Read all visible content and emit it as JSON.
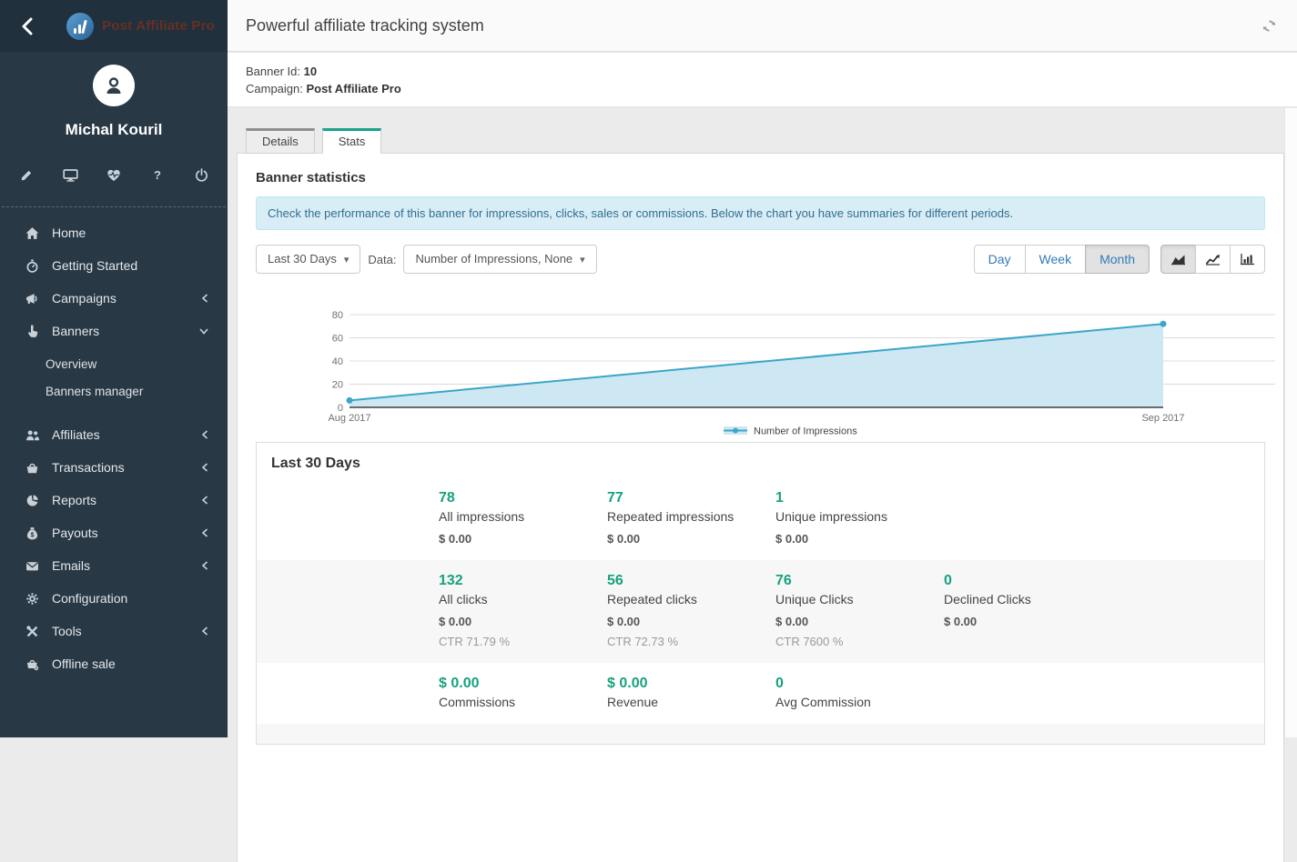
{
  "header": {
    "title": "Powerful affiliate tracking system"
  },
  "banner_info": {
    "banner_id_label": "Banner Id:",
    "banner_id": "10",
    "campaign_label": "Campaign:",
    "campaign": "Post Affiliate Pro"
  },
  "tabs": [
    {
      "label": "Details",
      "active": false
    },
    {
      "label": "Stats",
      "active": true
    }
  ],
  "sidebar": {
    "logo_text": "Post Affiliate Pro",
    "user_name": "Michal Kouril",
    "quick_icons": [
      "pencil-icon",
      "display-icon",
      "heartbeat-icon",
      "help-icon",
      "power-icon"
    ],
    "nav": [
      {
        "label": "Home",
        "icon": "home-icon"
      },
      {
        "label": "Getting Started",
        "icon": "stopwatch-icon"
      },
      {
        "label": "Campaigns",
        "icon": "megaphone-icon",
        "chevron": "left"
      },
      {
        "label": "Banners",
        "icon": "hand-pointer-icon",
        "chevron": "down",
        "expanded": true,
        "children": [
          {
            "label": "Overview"
          },
          {
            "label": "Banners manager"
          }
        ]
      },
      {
        "label": "Affiliates",
        "icon": "users-icon",
        "chevron": "left"
      },
      {
        "label": "Transactions",
        "icon": "basket-icon",
        "chevron": "left"
      },
      {
        "label": "Reports",
        "icon": "pie-chart-icon",
        "chevron": "left"
      },
      {
        "label": "Payouts",
        "icon": "money-bag-icon",
        "chevron": "left"
      },
      {
        "label": "Emails",
        "icon": "envelope-icon",
        "chevron": "left"
      },
      {
        "label": "Configuration",
        "icon": "gear-icon"
      },
      {
        "label": "Tools",
        "icon": "tools-icon",
        "chevron": "left"
      },
      {
        "label": "Offline sale",
        "icon": "cash-register-icon"
      }
    ]
  },
  "stats_section": {
    "title": "Banner statistics",
    "info": "Check the performance of this banner for impressions, clicks, sales or commissions. Below the chart you have summaries for different periods."
  },
  "filters": {
    "range_value": "Last 30 Days",
    "data_label": "Data:",
    "data_value": "Number of Impressions, None",
    "periods": [
      "Day",
      "Week",
      "Month"
    ],
    "active_period": "Month",
    "chart_types": [
      "area-chart-icon",
      "line-chart-icon",
      "bar-chart-icon"
    ],
    "active_chart_type": "area-chart-icon"
  },
  "chart_data": {
    "type": "area",
    "x": [
      "Aug 2017",
      "Sep 2017"
    ],
    "series": [
      {
        "name": "Number of Impressions",
        "values": [
          6,
          72
        ]
      }
    ],
    "ylim": [
      0,
      80
    ],
    "yticks": [
      0,
      20,
      40,
      60,
      80
    ],
    "grid": true,
    "legend_position": "bottom",
    "line_color": "#3ba6c9",
    "fill_color": "#cde7f3",
    "title": "",
    "xlabel": "",
    "ylabel": ""
  },
  "summary": {
    "title": "Last 30 Days",
    "rows": [
      {
        "cells": [
          {
            "value": "78",
            "label": "All impressions",
            "money": "$ 0.00"
          },
          {
            "value": "77",
            "label": "Repeated impressions",
            "money": "$ 0.00"
          },
          {
            "value": "1",
            "label": "Unique impressions",
            "money": "$ 0.00"
          }
        ]
      },
      {
        "cells": [
          {
            "value": "132",
            "label": "All clicks",
            "money": "$ 0.00",
            "ctr": "CTR 71.79 %"
          },
          {
            "value": "56",
            "label": "Repeated clicks",
            "money": "$ 0.00",
            "ctr": "CTR 72.73 %"
          },
          {
            "value": "76",
            "label": "Unique Clicks",
            "money": "$ 0.00",
            "ctr": "CTR 7600 %"
          },
          {
            "value": "0",
            "label": "Declined Clicks",
            "money": "$ 0.00"
          }
        ]
      },
      {
        "cells": [
          {
            "value": "$ 0.00",
            "label": "Commissions"
          },
          {
            "value": "$ 0.00",
            "label": "Revenue"
          },
          {
            "value": "0",
            "label": "Avg Commission"
          }
        ]
      }
    ]
  },
  "colors": {
    "accent_green": "#17a17e",
    "tab_active_border": "#18a28b",
    "link_blue": "#337ab7",
    "info_text": "#31708f",
    "sidebar_bg": "#283845",
    "sidebar_header_bg": "#20303c"
  }
}
